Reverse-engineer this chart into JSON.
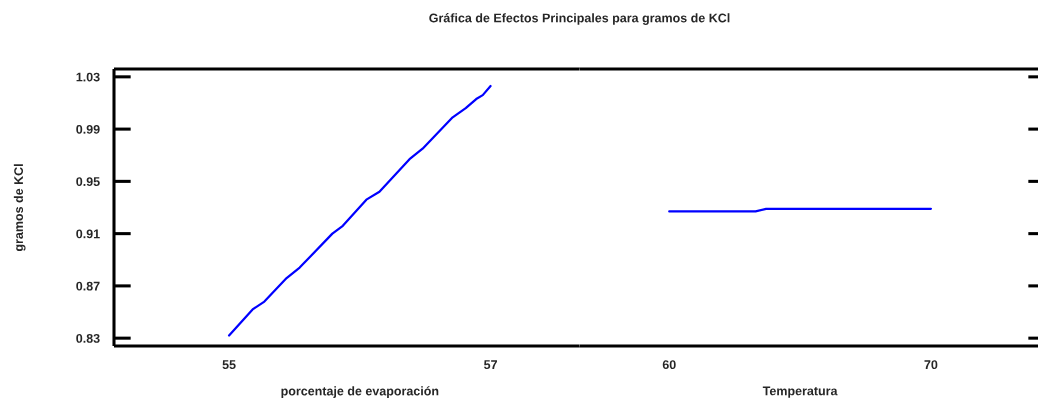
{
  "chart_data": [
    {
      "type": "line",
      "title": "Gráfica de Efectos Principales para gramos de KCl",
      "ylabel": "gramos de KCl",
      "xlabel": "porcentaje de evaporación",
      "line_style": "solid",
      "series": [
        {
          "color": "#0000ff",
          "x": [
            55.0,
            55.18,
            55.27,
            55.44,
            55.54,
            55.79,
            55.87,
            56.05,
            56.15,
            56.38,
            56.48,
            56.71,
            56.81,
            56.89,
            56.94,
            57.0
          ],
          "values": [
            0.832,
            0.852,
            0.858,
            0.876,
            0.884,
            0.91,
            0.916,
            0.936,
            0.942,
            0.967,
            0.975,
            0.999,
            1.006,
            1.013,
            1.016,
            1.023
          ]
        }
      ],
      "xlim": [
        54.12,
        57.68
      ],
      "xticks": [
        55,
        57
      ],
      "ylim": [
        0.824,
        1.036
      ],
      "yticks": [
        0.83,
        0.87,
        0.91,
        0.95,
        0.99,
        1.03
      ]
    },
    {
      "type": "line",
      "xlabel": "Temperatura",
      "line_style": "solid",
      "series": [
        {
          "color": "#0000ff",
          "x": [
            60,
            63.3,
            63.7,
            70
          ],
          "values": [
            0.927,
            0.927,
            0.929,
            0.929
          ]
        }
      ],
      "xlim": [
        56.57,
        74.36
      ],
      "xticks": [
        60,
        70
      ],
      "ylim": [
        0.824,
        1.036
      ],
      "yticks": [
        0.83,
        0.87,
        0.91,
        0.95,
        0.99,
        1.03
      ],
      "tick_labels": "x"
    }
  ]
}
